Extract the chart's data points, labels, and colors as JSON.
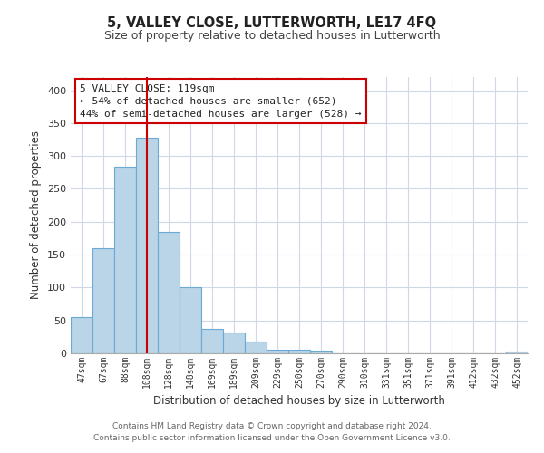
{
  "title": "5, VALLEY CLOSE, LUTTERWORTH, LE17 4FQ",
  "subtitle": "Size of property relative to detached houses in Lutterworth",
  "xlabel": "Distribution of detached houses by size in Lutterworth",
  "ylabel": "Number of detached properties",
  "bar_labels": [
    "47sqm",
    "67sqm",
    "88sqm",
    "108sqm",
    "128sqm",
    "148sqm",
    "169sqm",
    "189sqm",
    "209sqm",
    "229sqm",
    "250sqm",
    "270sqm",
    "290sqm",
    "310sqm",
    "331sqm",
    "351sqm",
    "371sqm",
    "391sqm",
    "412sqm",
    "432sqm",
    "452sqm"
  ],
  "bar_values": [
    55,
    160,
    283,
    328,
    185,
    101,
    37,
    32,
    18,
    6,
    5,
    4,
    0,
    0,
    0,
    0,
    0,
    0,
    0,
    0,
    3
  ],
  "bar_color": "#bad4e8",
  "bar_edge_color": "#6aaad4",
  "vline_x": 3.0,
  "vline_color": "#cc0000",
  "ylim": [
    0,
    420
  ],
  "yticks": [
    0,
    50,
    100,
    150,
    200,
    250,
    300,
    350,
    400
  ],
  "annotation_title": "5 VALLEY CLOSE: 119sqm",
  "annotation_line1": "← 54% of detached houses are smaller (652)",
  "annotation_line2": "44% of semi-detached houses are larger (528) →",
  "annotation_box_color": "#ffffff",
  "annotation_box_edge": "#cc0000",
  "footer_line1": "Contains HM Land Registry data © Crown copyright and database right 2024.",
  "footer_line2": "Contains public sector information licensed under the Open Government Licence v3.0.",
  "background_color": "#ffffff",
  "grid_color": "#d0d8e8"
}
